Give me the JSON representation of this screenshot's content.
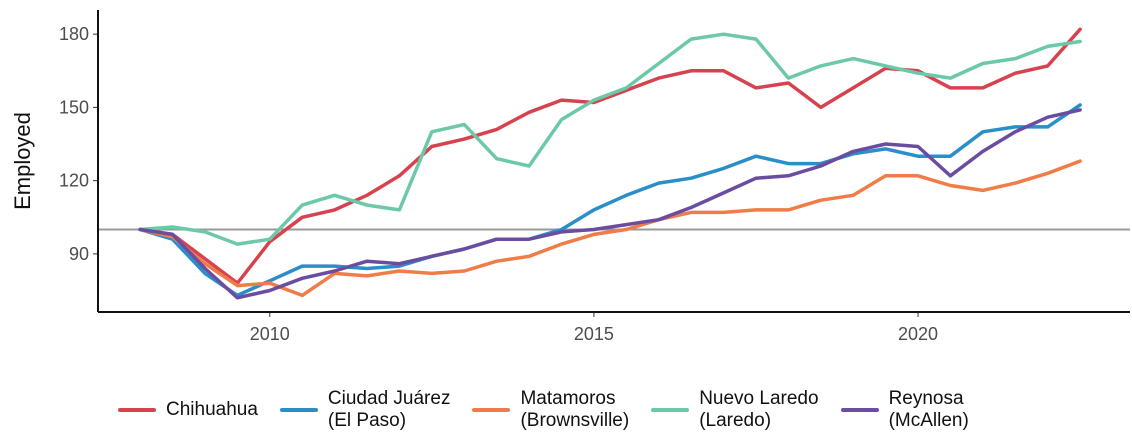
{
  "chart_data": {
    "type": "line",
    "ylabel": "Employed",
    "x": [
      2008,
      2008.5,
      2009,
      2009.5,
      2010,
      2010.5,
      2011,
      2011.5,
      2012,
      2012.5,
      2013,
      2013.5,
      2014,
      2014.5,
      2015,
      2015.5,
      2016,
      2016.5,
      2017,
      2017.5,
      2018,
      2018.5,
      2019,
      2019.5,
      2020,
      2020.5,
      2021,
      2021.5,
      2022,
      2022.5
    ],
    "series": [
      {
        "name": "Chihuahua",
        "color": "#d7424f",
        "values": [
          100,
          98,
          88,
          78,
          95,
          105,
          108,
          114,
          122,
          134,
          137,
          141,
          148,
          153,
          152,
          157,
          162,
          165,
          165,
          158,
          160,
          150,
          158,
          166,
          165,
          158,
          158,
          164,
          167,
          182
        ]
      },
      {
        "name": "Ciudad Juárez\n(El Paso)",
        "color": "#2a8fc9",
        "values": [
          100,
          96,
          82,
          73,
          79,
          85,
          85,
          84,
          85,
          89,
          92,
          96,
          96,
          100,
          108,
          114,
          119,
          121,
          125,
          130,
          127,
          127,
          131,
          133,
          130,
          130,
          140,
          142,
          142,
          151
        ]
      },
      {
        "name": "Matamoros\n(Brownsville)",
        "color": "#f07c47",
        "values": [
          100,
          97,
          86,
          77,
          78,
          73,
          82,
          81,
          83,
          82,
          83,
          87,
          89,
          94,
          98,
          100,
          104,
          107,
          107,
          108,
          108,
          112,
          114,
          122,
          122,
          118,
          116,
          119,
          123,
          128
        ]
      },
      {
        "name": "Nuevo Laredo\n(Laredo)",
        "color": "#6cc9a7",
        "values": [
          100,
          101,
          99,
          94,
          96,
          110,
          114,
          110,
          108,
          140,
          143,
          129,
          126,
          145,
          153,
          158,
          168,
          178,
          180,
          178,
          162,
          167,
          170,
          167,
          164,
          162,
          168,
          170,
          175,
          177
        ]
      },
      {
        "name": "Reynosa\n(McAllen)",
        "color": "#6a4da0",
        "values": [
          100,
          98,
          84,
          72,
          75,
          80,
          83,
          87,
          86,
          89,
          92,
          96,
          96,
          99,
          100,
          102,
          104,
          109,
          115,
          121,
          122,
          126,
          132,
          135,
          134,
          122,
          132,
          140,
          146,
          149
        ]
      }
    ],
    "xlim": [
      2007.35,
      2023.27
    ],
    "xticks": [
      2010,
      2015,
      2020
    ],
    "ylim": [
      66.2,
      189.9
    ],
    "yticks": [
      90,
      120,
      150,
      180
    ],
    "hline": 100,
    "hline_color": "#999999",
    "legend": "bottom"
  }
}
